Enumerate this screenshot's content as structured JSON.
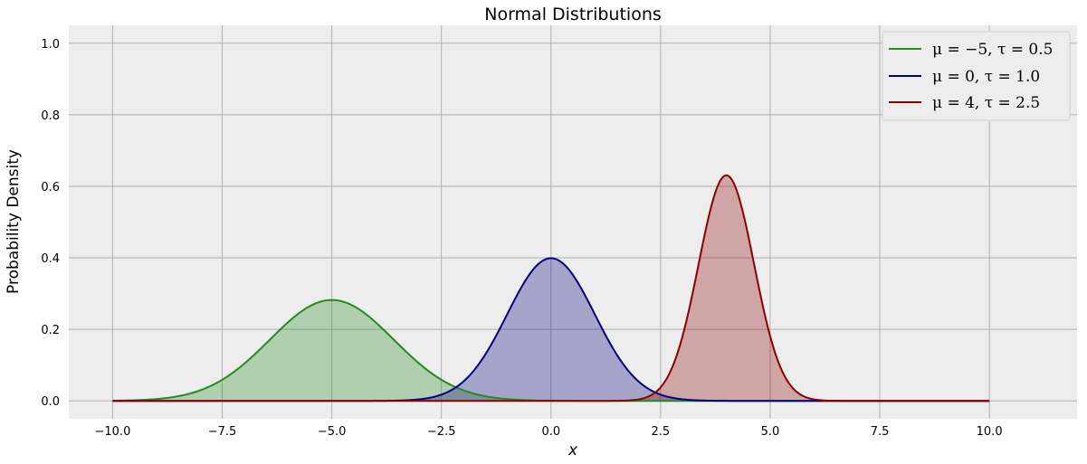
{
  "chart_data": {
    "type": "line",
    "title": "Normal Distributions",
    "xlabel": "x",
    "ylabel": "Probability Density",
    "xlim": [
      -11,
      12
    ],
    "ylim": [
      -0.05,
      1.05
    ],
    "x_range": [
      -10,
      10
    ],
    "xticks": [
      -10.0,
      -7.5,
      -5.0,
      -2.5,
      0.0,
      2.5,
      5.0,
      7.5,
      10.0
    ],
    "xtick_labels": [
      "−10.0",
      "−7.5",
      "−5.0",
      "−2.5",
      "0.0",
      "2.5",
      "5.0",
      "7.5",
      "10.0"
    ],
    "yticks": [
      0.0,
      0.2,
      0.4,
      0.6,
      0.8,
      1.0
    ],
    "ytick_labels": [
      "0.0",
      "0.2",
      "0.4",
      "0.6",
      "0.8",
      "1.0"
    ],
    "grid": true,
    "filled": true,
    "legend_position": "top-right",
    "series": [
      {
        "name": "μ = −5,  τ = 0.5",
        "mu": -5,
        "tau": 0.5,
        "color": "#228b22"
      },
      {
        "name": "μ = 0,  τ = 1.0",
        "mu": 0,
        "tau": 1.0,
        "color": "#000080"
      },
      {
        "name": "μ = 4,  τ = 2.5",
        "mu": 4,
        "tau": 2.5,
        "color": "#8b0000"
      }
    ],
    "colors": {
      "background": "#ededed",
      "grid": "#b0b0b0"
    }
  }
}
